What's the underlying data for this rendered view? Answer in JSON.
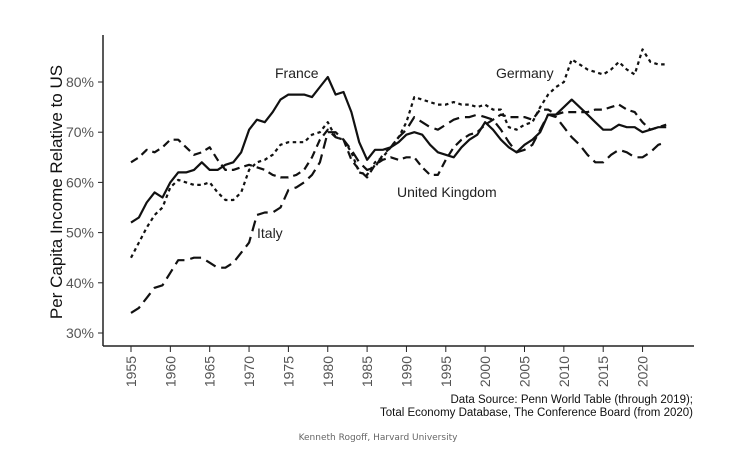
{
  "chart_data": {
    "type": "line",
    "title": "",
    "xlabel": "",
    "ylabel": "Per Capita Income Relative to US",
    "xlim": [
      1955,
      2023
    ],
    "ylim": [
      30,
      88
    ],
    "y_ticks": [
      30,
      40,
      50,
      60,
      70,
      80
    ],
    "y_tick_labels": [
      "30%",
      "40%",
      "50%",
      "60%",
      "70%",
      "80%"
    ],
    "x_ticks": [
      1955,
      1960,
      1965,
      1970,
      1975,
      1980,
      1985,
      1990,
      1995,
      2000,
      2005,
      2010,
      2015,
      2020
    ],
    "x_tick_labels": [
      "1955",
      "1960",
      "1965",
      "1970",
      "1975",
      "1980",
      "1985",
      "1990",
      "1995",
      "2000",
      "2005",
      "2010",
      "2015",
      "2020"
    ],
    "grid": false,
    "legend": "inline labels",
    "x": [
      1955,
      1956,
      1957,
      1958,
      1959,
      1960,
      1961,
      1962,
      1963,
      1964,
      1965,
      1966,
      1967,
      1968,
      1969,
      1970,
      1971,
      1972,
      1973,
      1974,
      1975,
      1976,
      1977,
      1978,
      1979,
      1980,
      1981,
      1982,
      1983,
      1984,
      1985,
      1986,
      1987,
      1988,
      1989,
      1990,
      1991,
      1992,
      1993,
      1994,
      1995,
      1996,
      1997,
      1998,
      1999,
      2000,
      2001,
      2002,
      2003,
      2004,
      2005,
      2006,
      2007,
      2008,
      2009,
      2010,
      2011,
      2012,
      2013,
      2014,
      2015,
      2016,
      2017,
      2018,
      2019,
      2020,
      2021,
      2022,
      2023
    ],
    "series": [
      {
        "name": "France",
        "style": "solid",
        "label": "France",
        "values": [
          52,
          53,
          56,
          58,
          57,
          60,
          62,
          62,
          62.5,
          64,
          62.5,
          62.5,
          63.5,
          64,
          66,
          70.5,
          72.5,
          72,
          74,
          76.5,
          77.5,
          77.5,
          77.5,
          77,
          79,
          81,
          77.5,
          78,
          74,
          68,
          64.5,
          66.5,
          66.5,
          67,
          68,
          69.5,
          70,
          69.5,
          67.5,
          66,
          65.5,
          65,
          67,
          68.5,
          69.5,
          72,
          70.5,
          68.5,
          67,
          66,
          67.5,
          68.5,
          70,
          73.5,
          73.5,
          75,
          76.5,
          75,
          73.5,
          72,
          70.5,
          70.5,
          71.5,
          71,
          71,
          70,
          70.5,
          71,
          71
        ]
      },
      {
        "name": "Germany",
        "style": "dotted",
        "label": "Germany",
        "values": [
          45,
          48,
          51,
          53.5,
          55,
          59,
          60.5,
          60,
          59.5,
          59.5,
          60,
          58,
          56.5,
          56.5,
          58,
          62.5,
          64,
          64.5,
          65.5,
          67.5,
          68,
          68,
          68,
          69.5,
          70,
          72,
          69,
          68.5,
          66,
          62,
          61.5,
          64,
          65,
          67,
          69,
          72,
          77,
          76.5,
          76,
          75.5,
          75.5,
          76,
          75.5,
          75.5,
          75,
          75.5,
          74.5,
          74.5,
          71,
          70.5,
          71.5,
          72,
          75,
          77.5,
          79,
          80,
          84.5,
          83.5,
          82.5,
          82,
          81.5,
          82.5,
          84,
          82.5,
          81.5,
          86.5,
          84,
          83.5,
          83.5
        ]
      },
      {
        "name": "United Kingdom",
        "style": "dashed",
        "label": "United Kingdom",
        "values": [
          64,
          65,
          66.5,
          66,
          67,
          68.5,
          68.5,
          67,
          65.5,
          66,
          67,
          64.5,
          62.5,
          62.5,
          63,
          63.5,
          63,
          62.5,
          61.5,
          61,
          61,
          61.5,
          62.5,
          65,
          68.5,
          70.5,
          69,
          68.5,
          64.5,
          62.5,
          61,
          63.5,
          64.5,
          65,
          64.5,
          65,
          65,
          63,
          61.5,
          61.5,
          64.5,
          67,
          68.5,
          69.5,
          70,
          71.5,
          72.5,
          73.5,
          73,
          73,
          73,
          72.5,
          74.5,
          74.5,
          73.5,
          74,
          74,
          74,
          74,
          74.5,
          74.5,
          75,
          75.5,
          74.5,
          74,
          72,
          70.5,
          71,
          71.5
        ]
      },
      {
        "name": "Italy",
        "style": "long-dash",
        "label": "Italy",
        "values": [
          34,
          35,
          37,
          39,
          39.5,
          42,
          44.5,
          44.5,
          45,
          45,
          44,
          43,
          43,
          44,
          46,
          48,
          53.5,
          54,
          54,
          55,
          58.5,
          59,
          60,
          61.5,
          64,
          70,
          70,
          68.5,
          66.5,
          64,
          62.5,
          63,
          65.5,
          67,
          69,
          70.5,
          73,
          72,
          71,
          70.5,
          71.5,
          72.5,
          73,
          73,
          73.5,
          73,
          72.5,
          70.5,
          68,
          66,
          66.5,
          67.5,
          70.5,
          73.5,
          73,
          71,
          69,
          67.5,
          65.5,
          64,
          64,
          65.5,
          66.5,
          66,
          65,
          65,
          66,
          67.5,
          68
        ]
      }
    ],
    "annotations": [
      "Data Source: Penn World Table (through 2019);",
      "Total Economy Database, The Conference Board (from 2020)"
    ]
  },
  "footer": {
    "credit": "Kenneth Rogoff, Harvard University"
  }
}
